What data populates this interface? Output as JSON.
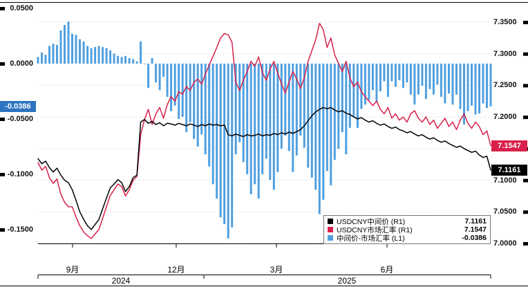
{
  "chart_data": {
    "type": "bar+line",
    "title": "",
    "n_points": 120,
    "grid": "dotted-horizontal",
    "legend_position": "bottom-right-inside",
    "series": [
      {
        "name": "USDCNY中间价 (R1)",
        "type": "line",
        "axis": "right",
        "color": "#000000",
        "last_value": 7.1161,
        "values": [
          7.134,
          7.126,
          7.13,
          7.12,
          7.113,
          7.119,
          7.108,
          7.1,
          7.096,
          7.085,
          7.068,
          7.05,
          7.038,
          7.028,
          7.022,
          7.03,
          7.038,
          7.055,
          7.072,
          7.088,
          7.094,
          7.101,
          7.096,
          7.082,
          7.09,
          7.104,
          7.108,
          7.192,
          7.196,
          7.19,
          7.193,
          7.188,
          7.191,
          7.186,
          7.19,
          7.189,
          7.187,
          7.19,
          7.188,
          7.186,
          7.189,
          7.187,
          7.185,
          7.188,
          7.186,
          7.189,
          7.187,
          7.188,
          7.186,
          7.187,
          7.172,
          7.17,
          7.173,
          7.171,
          7.169,
          7.172,
          7.17,
          7.171,
          7.173,
          7.17,
          7.172,
          7.171,
          7.174,
          7.172,
          7.175,
          7.173,
          7.176,
          7.174,
          7.177,
          7.18,
          7.186,
          7.194,
          7.202,
          7.208,
          7.212,
          7.215,
          7.213,
          7.215,
          7.211,
          7.208,
          7.21,
          7.206,
          7.204,
          7.2,
          7.197,
          7.199,
          7.195,
          7.192,
          7.194,
          7.19,
          7.187,
          7.189,
          7.185,
          7.182,
          7.184,
          7.18,
          7.178,
          7.175,
          7.177,
          7.173,
          7.17,
          7.172,
          7.168,
          7.165,
          7.167,
          7.163,
          7.16,
          7.162,
          7.158,
          7.155,
          7.152,
          7.154,
          7.15,
          7.147,
          7.144,
          7.146,
          7.14,
          7.136,
          7.138,
          7.1161
        ]
      },
      {
        "name": "USDCNY市场汇率 (R1)",
        "type": "line",
        "axis": "right",
        "color": "#d8204a",
        "last_value": 7.1547,
        "values": [
          7.128,
          7.116,
          7.122,
          7.104,
          7.095,
          7.102,
          7.078,
          7.065,
          7.058,
          7.058,
          7.042,
          7.028,
          7.018,
          7.012,
          7.008,
          7.015,
          7.022,
          7.04,
          7.058,
          7.076,
          7.085,
          7.094,
          7.09,
          7.075,
          7.085,
          7.1,
          7.106,
          7.172,
          7.196,
          7.212,
          7.188,
          7.205,
          7.215,
          7.198,
          7.22,
          7.232,
          7.225,
          7.24,
          7.236,
          7.248,
          7.242,
          7.255,
          7.26,
          7.252,
          7.268,
          7.282,
          7.296,
          7.31,
          7.325,
          7.332,
          7.33,
          7.318,
          7.255,
          7.242,
          7.258,
          7.272,
          7.288,
          7.28,
          7.295,
          7.27,
          7.258,
          7.276,
          7.288,
          7.27,
          7.252,
          7.238,
          7.255,
          7.272,
          7.26,
          7.245,
          7.262,
          7.288,
          7.305,
          7.322,
          7.348,
          7.338,
          7.31,
          7.325,
          7.298,
          7.285,
          7.272,
          7.288,
          7.262,
          7.248,
          7.255,
          7.24,
          7.232,
          7.225,
          7.218,
          7.225,
          7.212,
          7.205,
          7.215,
          7.198,
          7.205,
          7.195,
          7.2,
          7.192,
          7.205,
          7.21,
          7.198,
          7.192,
          7.2,
          7.188,
          7.195,
          7.182,
          7.19,
          7.198,
          7.185,
          7.192,
          7.18,
          7.195,
          7.205,
          7.19,
          7.182,
          7.192,
          7.185,
          7.172,
          7.178,
          7.1547
        ]
      },
      {
        "name": "中间价-市场汇率 (L1)",
        "type": "bar",
        "axis": "left",
        "color": "#4f9fdf",
        "last_value": -0.0386,
        "values": [
          0.006,
          0.01,
          0.008,
          0.016,
          0.018,
          0.017,
          0.03,
          0.035,
          0.038,
          0.027,
          0.026,
          0.022,
          0.02,
          0.016,
          0.014,
          0.015,
          0.016,
          0.015,
          0.014,
          0.012,
          0.009,
          0.007,
          0.006,
          0.007,
          0.005,
          0.004,
          0.002,
          0.02,
          0.0,
          -0.022,
          0.005,
          -0.017,
          -0.024,
          -0.012,
          -0.03,
          -0.043,
          -0.038,
          -0.05,
          -0.048,
          -0.062,
          -0.053,
          -0.068,
          -0.075,
          -0.064,
          -0.082,
          -0.093,
          -0.109,
          -0.122,
          -0.139,
          -0.145,
          -0.158,
          -0.148,
          -0.082,
          -0.071,
          -0.089,
          -0.1,
          -0.118,
          -0.109,
          -0.122,
          -0.1,
          -0.086,
          -0.105,
          -0.114,
          -0.098,
          -0.077,
          -0.065,
          -0.079,
          -0.098,
          -0.083,
          -0.065,
          -0.076,
          -0.094,
          -0.103,
          -0.114,
          -0.136,
          -0.123,
          -0.097,
          -0.11,
          -0.087,
          -0.077,
          -0.062,
          -0.082,
          -0.058,
          -0.048,
          -0.058,
          -0.041,
          -0.037,
          -0.033,
          -0.024,
          -0.035,
          -0.025,
          -0.016,
          -0.03,
          -0.016,
          -0.021,
          -0.015,
          -0.022,
          -0.017,
          -0.028,
          -0.037,
          -0.028,
          -0.02,
          -0.032,
          -0.023,
          -0.028,
          -0.019,
          -0.03,
          -0.036,
          -0.027,
          -0.037,
          -0.028,
          -0.041,
          -0.055,
          -0.043,
          -0.038,
          -0.046,
          -0.045,
          -0.036,
          -0.04,
          -0.0386
        ]
      }
    ],
    "left_axis": {
      "ticks": [
        "0.0500",
        "0.0000",
        "-0.0500",
        "-0.1000",
        "-0.1500"
      ],
      "tick_values": [
        0.05,
        0.0,
        -0.05,
        -0.1,
        -0.15
      ],
      "range": [
        0.05,
        -0.15
      ],
      "current": {
        "label": "-0.0386",
        "value": -0.0386,
        "bg": "#2e74c0",
        "fg": "#ffffff"
      }
    },
    "right_axis": {
      "ticks": [
        "7.3500",
        "7.3000",
        "7.2500",
        "7.2000",
        "7.1500",
        "7.1000",
        "7.0500",
        "7.0000"
      ],
      "tick_values": [
        7.35,
        7.3,
        7.25,
        7.2,
        7.15,
        7.1,
        7.05,
        7.0
      ],
      "range": [
        7.35,
        7.0
      ],
      "badges": [
        {
          "label": "7.1547",
          "value": 7.1547,
          "bg": "#d8204a",
          "fg": "#ffffff"
        },
        {
          "label": "7.1161",
          "value": 7.1161,
          "bg": "#000000",
          "fg": "#ffffff"
        }
      ]
    },
    "x_axis": {
      "month_ticks": [
        {
          "label": "9月",
          "pos": 0.0763
        },
        {
          "label": "12月",
          "pos": 0.3053
        },
        {
          "label": "3月",
          "pos": 0.5267
        },
        {
          "label": "6月",
          "pos": 0.771
        }
      ],
      "year_ticks": [
        {
          "label": "2024",
          "start": 0.0,
          "end": 0.3664
        },
        {
          "label": "2025",
          "start": 0.3664,
          "end": 1.0
        }
      ]
    },
    "legend": {
      "rows": [
        {
          "swatch": "#000000",
          "label": "USDCNY中间价 (R1)",
          "value": "7.1161"
        },
        {
          "swatch": "#d8204a",
          "label": "USDCNY市场汇率 (R1)",
          "value": "7.1547"
        },
        {
          "swatch": "#4f9fdf",
          "label": "中间价-市场汇率 (L1)",
          "value": "-0.0386"
        }
      ]
    }
  }
}
